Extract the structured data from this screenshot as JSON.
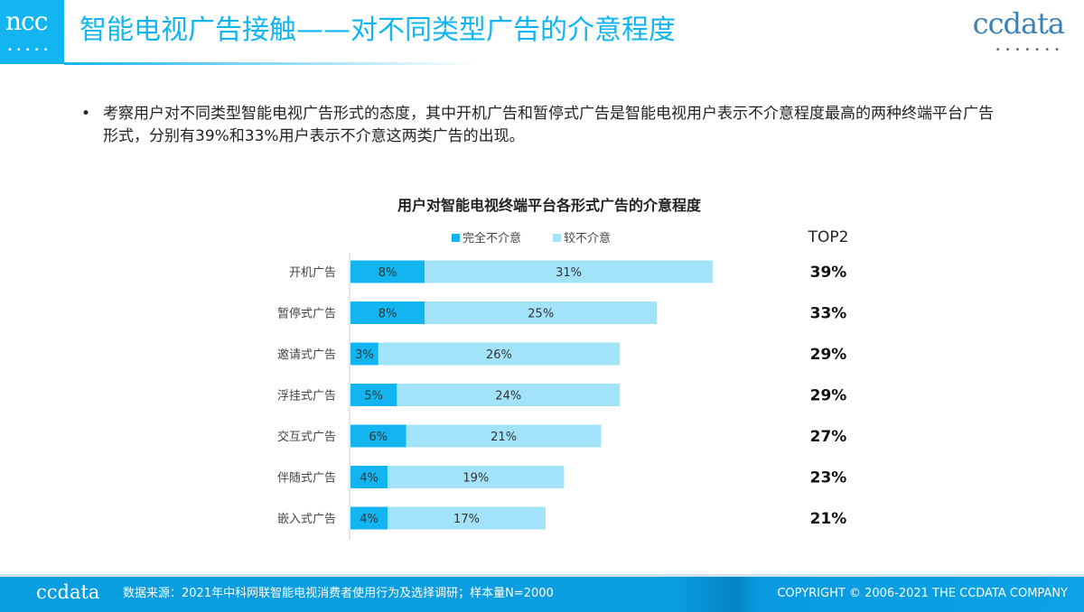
{
  "header": {
    "logo": "ncc",
    "title": "智能电视广告接触——对不同类型广告的介意程度",
    "brand": "ccdata"
  },
  "bullet": "考察用户对不同类型智能电视广告形式的态度，其中开机广告和暂停式广告是智能电视用户表示不介意程度最高的两种终端平台广告形式，分别有39%和33%用户表示不介意这两类广告的出现。",
  "chart_data": {
    "type": "bar",
    "orientation": "horizontal",
    "stacked": true,
    "title": "用户对智能电视终端平台各形式广告的介意程度",
    "categories": [
      "开机广告",
      "暂停式广告",
      "邀请式广告",
      "浮挂式广告",
      "交互式广告",
      "伴随式广告",
      "嵌入式广告"
    ],
    "series": [
      {
        "name": "完全不介意",
        "color": "#12b5ef",
        "values": [
          8,
          8,
          3,
          5,
          6,
          4,
          4
        ]
      },
      {
        "name": "较不介意",
        "color": "#a3e3fa",
        "values": [
          31,
          25,
          26,
          24,
          21,
          19,
          17
        ]
      }
    ],
    "legend": "top",
    "top2_header": "TOP2",
    "top2": [
      "39%",
      "33%",
      "29%",
      "29%",
      "27%",
      "23%",
      "21%"
    ]
  },
  "footer": {
    "brand": "ccdata",
    "source": "数据来源：2021年中科网联智能电视消费者使用行为及选择调研；样本量N=2000",
    "copyright": "COPYRIGHT © 2006-2021 THE CCDATA COMPANY"
  }
}
